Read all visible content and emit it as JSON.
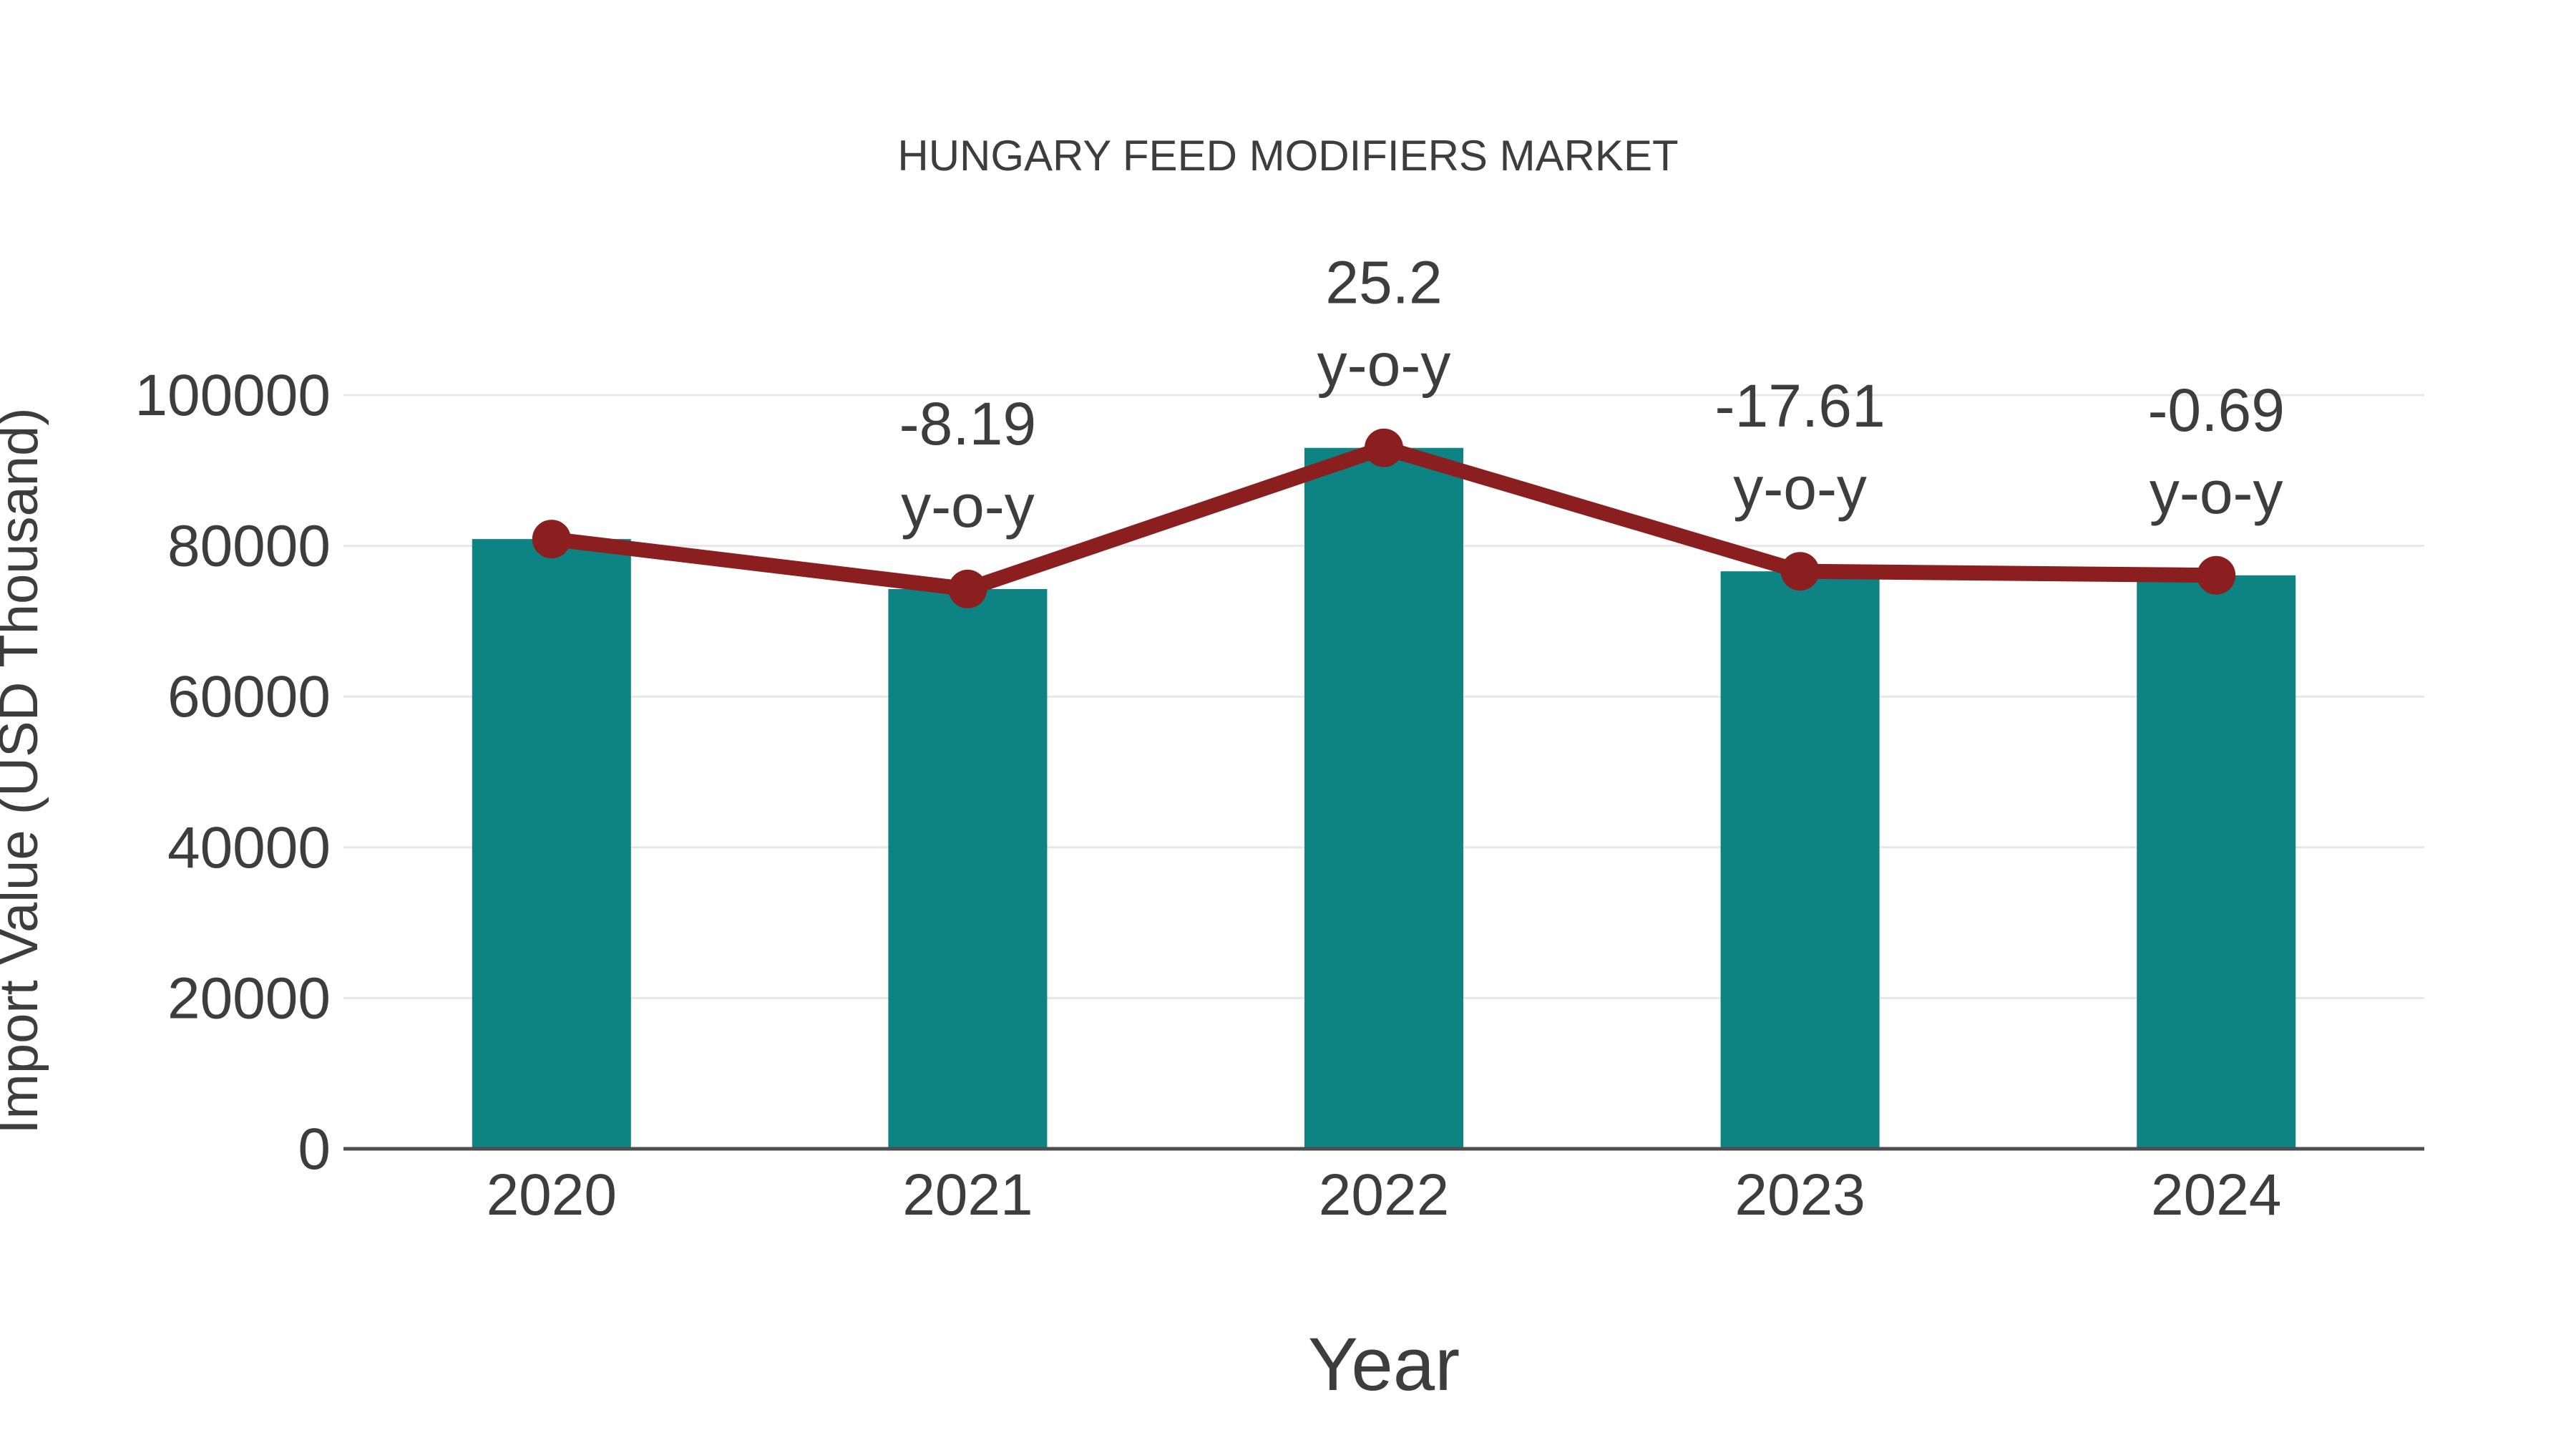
{
  "title": "HUNGARY FEED MODIFIERS MARKET",
  "colors": {
    "bar": "#0d8383",
    "line": "#8b1f1f",
    "text": "#3d3d3d",
    "grid": "#e7e7e7",
    "axis": "#4d4d4d",
    "background": "#ffffff"
  },
  "chart_data": {
    "type": "bar",
    "title": "HUNGARY FEED MODIFIERS MARKET",
    "xlabel": "Year",
    "ylabel": "Import Value (USD Thousand)",
    "categories": [
      "2020",
      "2021",
      "2022",
      "2023",
      "2024"
    ],
    "series": [
      {
        "name": "import-value-bars",
        "type": "bar",
        "values": [
          80900,
          74270,
          93000,
          76620,
          76090
        ]
      },
      {
        "name": "import-value-trend-line",
        "type": "line",
        "values": [
          80900,
          74270,
          93000,
          76620,
          76090
        ]
      }
    ],
    "annotations": [
      {
        "category": "2021",
        "value_label": "-8.19",
        "suffix_label": "y-o-y"
      },
      {
        "category": "2022",
        "value_label": "25.2",
        "suffix_label": "y-o-y"
      },
      {
        "category": "2023",
        "value_label": "-17.61",
        "suffix_label": "y-o-y"
      },
      {
        "category": "2024",
        "value_label": "-0.69",
        "suffix_label": "y-o-y"
      }
    ],
    "ylim": [
      0,
      100000
    ],
    "yticks": [
      0,
      20000,
      40000,
      60000,
      80000,
      100000
    ],
    "ytick_labels": [
      "0",
      "20000",
      "40000",
      "60000",
      "80000",
      "100000"
    ],
    "grid": true,
    "legend_position": "none"
  }
}
